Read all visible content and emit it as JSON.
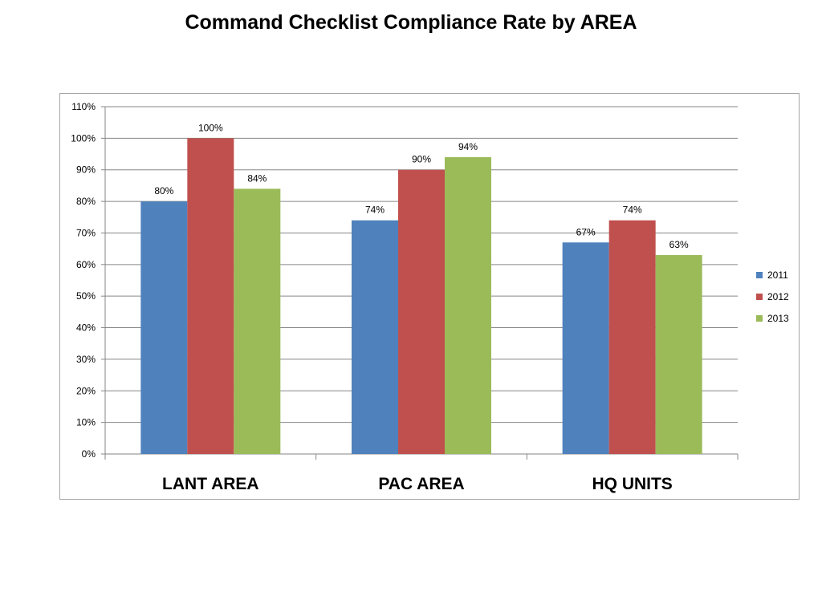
{
  "title": "Command Checklist Compliance Rate by AREA",
  "chart_data": {
    "type": "bar",
    "title": "Command Checklist Compliance Rate by AREA",
    "categories": [
      "LANT AREA",
      "PAC AREA",
      "HQ UNITS"
    ],
    "series": [
      {
        "name": "2011",
        "color": "#4f81bd",
        "values": [
          80,
          74,
          67
        ],
        "labels": [
          "80%",
          "74%",
          "67%"
        ]
      },
      {
        "name": "2012",
        "color": "#c0504d",
        "values": [
          100,
          90,
          74
        ],
        "labels": [
          "100%",
          "90%",
          "74%"
        ]
      },
      {
        "name": "2013",
        "color": "#9bbb59",
        "values": [
          84,
          94,
          63
        ],
        "labels": [
          "84%",
          "94%",
          "63%"
        ]
      }
    ],
    "y_ticks": [
      "0%",
      "10%",
      "20%",
      "30%",
      "40%",
      "50%",
      "60%",
      "70%",
      "80%",
      "90%",
      "100%",
      "110%"
    ],
    "ylim": [
      0,
      110
    ],
    "y_unit": "%",
    "grid": true,
    "legend": "right"
  }
}
